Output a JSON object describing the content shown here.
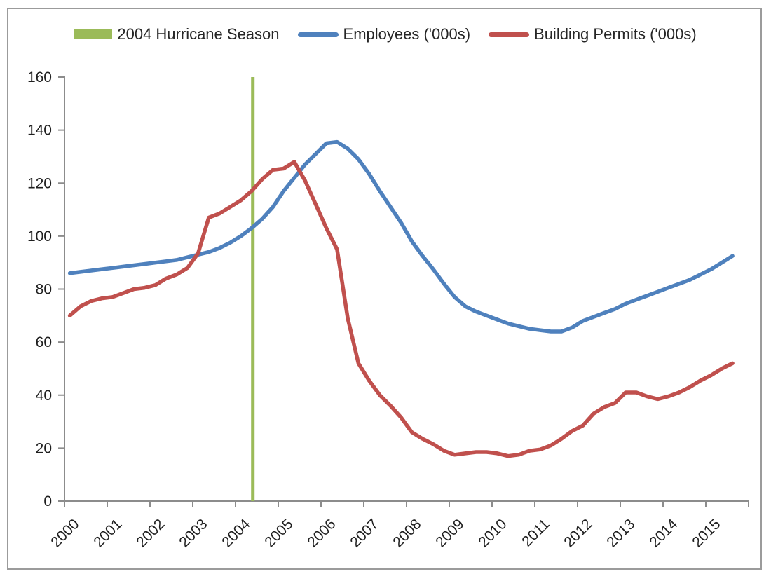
{
  "chart_data": {
    "type": "line",
    "title": "",
    "xlabel": "",
    "ylabel": "",
    "ylim": [
      0,
      160
    ],
    "grid": false,
    "legend_position": "top",
    "axis_color": "#8c8c8c",
    "tick_label_color": "#1f1f1f",
    "y_ticks": [
      "0",
      "20",
      "40",
      "60",
      "80",
      "100",
      "120",
      "140",
      "160"
    ],
    "x_tick_labels": [
      "2000",
      "2001",
      "2002",
      "2003",
      "2004",
      "2005",
      "2006",
      "2007",
      "2008",
      "2009",
      "2010",
      "2011",
      "2012",
      "2013",
      "2014",
      "2015"
    ],
    "x_years": [
      2000,
      2000.25,
      2000.5,
      2000.75,
      2001,
      2001.25,
      2001.5,
      2001.75,
      2002,
      2002.25,
      2002.5,
      2002.75,
      2003,
      2003.25,
      2003.5,
      2003.75,
      2004,
      2004.25,
      2004.5,
      2004.75,
      2005,
      2005.25,
      2005.5,
      2005.75,
      2006,
      2006.25,
      2006.5,
      2006.75,
      2007,
      2007.25,
      2007.5,
      2007.75,
      2008,
      2008.25,
      2008.5,
      2008.75,
      2009,
      2009.25,
      2009.5,
      2009.75,
      2010,
      2010.25,
      2010.5,
      2010.75,
      2011,
      2011.25,
      2011.5,
      2011.75,
      2012,
      2012.25,
      2012.5,
      2012.75,
      2013,
      2013.25,
      2013.5,
      2013.75,
      2014,
      2014.25,
      2014.5,
      2014.75,
      2015,
      2015.25,
      2015.5
    ],
    "series": [
      {
        "name": "Employees ('000s)",
        "color": "#4F81BD",
        "values": [
          86,
          86.5,
          87,
          87.5,
          88,
          88.5,
          89,
          89.5,
          90,
          90.5,
          91,
          92,
          93,
          94,
          95.5,
          97.5,
          100,
          103,
          106.5,
          111,
          117,
          122,
          127,
          131,
          135,
          135.5,
          133,
          129,
          123.5,
          117,
          111,
          105,
          98,
          92.5,
          87.5,
          82,
          77,
          73.5,
          71.5,
          70,
          68.5,
          67,
          66,
          65,
          64.5,
          64,
          64,
          65.5,
          68,
          69.5,
          71,
          72.5,
          74.5,
          76,
          77.5,
          79,
          80.5,
          82,
          83.5,
          85.5,
          87.5,
          90,
          92.5
        ]
      },
      {
        "name": "Building Permits ('000s)",
        "color": "#C0504D",
        "values": [
          70,
          73.5,
          75.5,
          76.5,
          77,
          78.5,
          80,
          80.5,
          81.5,
          84,
          85.5,
          88,
          93.5,
          107,
          108.5,
          111,
          113.5,
          117,
          121.5,
          125,
          125.5,
          128,
          121,
          112,
          103,
          95,
          69,
          52,
          45.5,
          40,
          36,
          31.5,
          26,
          23.5,
          21.5,
          19,
          17.5,
          18,
          18.5,
          18.5,
          18,
          17,
          17.5,
          19,
          19.5,
          21,
          23.5,
          26.5,
          28.5,
          33,
          35.5,
          37,
          41,
          41,
          39.5,
          38.5,
          39.5,
          41,
          43,
          45.5,
          47.5,
          50,
          52
        ]
      }
    ],
    "annotation_line": {
      "label": "2004 Hurricane Season",
      "color": "#9BBB59",
      "x_year": 2004.28,
      "from": 0,
      "to": 160
    }
  },
  "legend": {
    "items": [
      {
        "label": "2004 Hurricane Season",
        "swatch": "rect",
        "color": "#9BBB59"
      },
      {
        "label": "Employees ('000s)",
        "swatch": "line",
        "color": "#4F81BD"
      },
      {
        "label": "Building Permits ('000s)",
        "swatch": "line",
        "color": "#C0504D"
      }
    ]
  }
}
